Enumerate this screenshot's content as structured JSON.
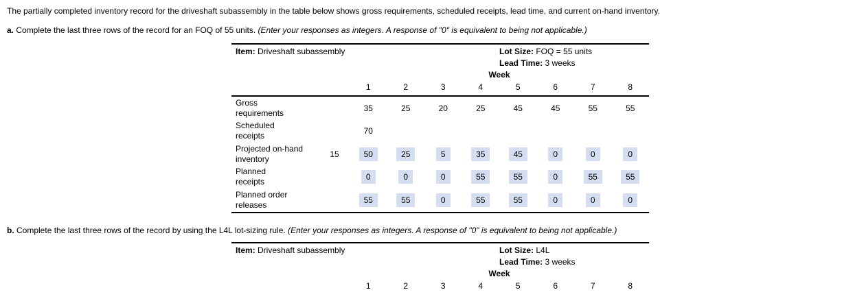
{
  "colors": {
    "answer_highlight": "#d5ddf0"
  },
  "intro": "The partially completed inventory record for the driveshaft subassembly in the table below shows gross requirements, scheduled receipts, lead time, and current on-hand inventory.",
  "section_a": {
    "label": "a.",
    "text": " Complete the last three rows of the record for an FOQ of 55 units. ",
    "note": "(Enter your responses as integers. A response of \"0\" is equivalent to being not applicable.)"
  },
  "section_b": {
    "label": "b.",
    "text": " Complete the last three rows of the record by using the L4L lot-sizing rule. ",
    "note": "(Enter your responses as integers. A response of \"0\" is equivalent to being not applicable.)"
  },
  "table_a": {
    "item_label": "Item:",
    "item_value": "Driveshaft subassembly",
    "lot_size_label": "Lot Size:",
    "lot_size_value": "FOQ = 55 units",
    "lead_time_label": "Lead Time:",
    "lead_time_value": "3 weeks",
    "week_label": "Week",
    "weeks": [
      "1",
      "2",
      "3",
      "4",
      "5",
      "6",
      "7",
      "8"
    ],
    "rows": [
      {
        "label1": "Gross",
        "label2": "requirements",
        "initial": "",
        "cells": [
          {
            "v": "35",
            "hl": false
          },
          {
            "v": "25",
            "hl": false
          },
          {
            "v": "20",
            "hl": false
          },
          {
            "v": "25",
            "hl": false
          },
          {
            "v": "45",
            "hl": false
          },
          {
            "v": "45",
            "hl": false
          },
          {
            "v": "55",
            "hl": false
          },
          {
            "v": "55",
            "hl": false
          }
        ]
      },
      {
        "label1": "Scheduled",
        "label2": "receipts",
        "initial": "",
        "cells": [
          {
            "v": "70",
            "hl": false
          },
          {
            "v": "",
            "hl": false
          },
          {
            "v": "",
            "hl": false
          },
          {
            "v": "",
            "hl": false
          },
          {
            "v": "",
            "hl": false
          },
          {
            "v": "",
            "hl": false
          },
          {
            "v": "",
            "hl": false
          },
          {
            "v": "",
            "hl": false
          }
        ]
      },
      {
        "label1": "Projected on-hand",
        "label2": "inventory",
        "initial": "15",
        "cells": [
          {
            "v": "50",
            "hl": true
          },
          {
            "v": "25",
            "hl": true
          },
          {
            "v": "5",
            "hl": true
          },
          {
            "v": "35",
            "hl": true
          },
          {
            "v": "45",
            "hl": true
          },
          {
            "v": "0",
            "hl": true
          },
          {
            "v": "0",
            "hl": true
          },
          {
            "v": "0",
            "hl": true
          }
        ]
      },
      {
        "label1": "Planned",
        "label2": "receipts",
        "initial": "",
        "cells": [
          {
            "v": "0",
            "hl": true
          },
          {
            "v": "0",
            "hl": true
          },
          {
            "v": "0",
            "hl": true
          },
          {
            "v": "55",
            "hl": true
          },
          {
            "v": "55",
            "hl": true
          },
          {
            "v": "0",
            "hl": true
          },
          {
            "v": "55",
            "hl": true
          },
          {
            "v": "55",
            "hl": true
          }
        ]
      },
      {
        "label1": "Planned order",
        "label2": "releases",
        "initial": "",
        "cells": [
          {
            "v": "55",
            "hl": true
          },
          {
            "v": "55",
            "hl": true
          },
          {
            "v": "0",
            "hl": true
          },
          {
            "v": "55",
            "hl": true
          },
          {
            "v": "55",
            "hl": true
          },
          {
            "v": "0",
            "hl": true
          },
          {
            "v": "0",
            "hl": true
          },
          {
            "v": "0",
            "hl": true
          }
        ]
      }
    ]
  },
  "table_b": {
    "item_label": "Item:",
    "item_value": "Driveshaft subassembly",
    "lot_size_label": "Lot Size:",
    "lot_size_value": "L4L",
    "lead_time_label": "Lead Time:",
    "lead_time_value": "3 weeks",
    "week_label": "Week",
    "weeks": [
      "1",
      "2",
      "3",
      "4",
      "5",
      "6",
      "7",
      "8"
    ]
  }
}
